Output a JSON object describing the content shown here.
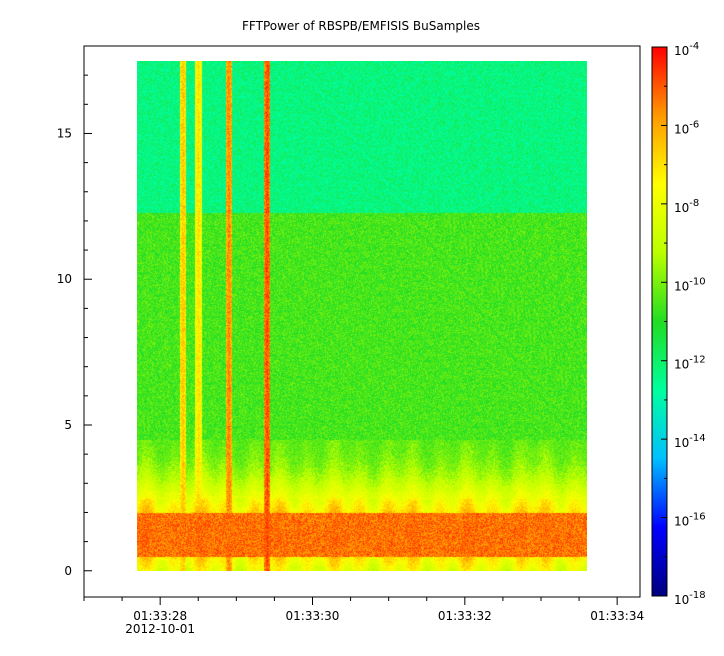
{
  "chart_data": {
    "type": "heatmap",
    "title": "FFTPower of RBSPB/EMFISIS  BuSamples",
    "xlabel": "",
    "ylabel": "",
    "x_axis": {
      "type": "time",
      "range": [
        "01:33:27",
        "01:33:34.3"
      ],
      "tick_labels": [
        "01:33:28",
        "01:33:30",
        "01:33:32",
        "01:33:34"
      ],
      "tick_sublabels": [
        "2012-10-01",
        "",
        "",
        ""
      ],
      "minor_tick_step_s": 0.5
    },
    "y_axis": {
      "range": [
        -0.9,
        18
      ],
      "ticks": [
        0,
        5,
        10,
        15
      ],
      "tick_labels": [
        "0",
        "5",
        "10",
        "15"
      ]
    },
    "colorbar": {
      "scale": "log",
      "range_exponents": [
        -18,
        -4
      ],
      "tick_labels": [
        {
          "base": "10",
          "exp": "-4"
        },
        {
          "base": "10",
          "exp": "-6"
        },
        {
          "base": "10",
          "exp": "-8"
        },
        {
          "base": "10",
          "exp": "-10"
        },
        {
          "base": "10",
          "exp": "-12"
        },
        {
          "base": "10",
          "exp": "-14"
        },
        {
          "base": "10",
          "exp": "-16"
        },
        {
          "base": "10",
          "exp": "-18"
        }
      ],
      "colormap": [
        "#00007f",
        "#0000ff",
        "#00bfff",
        "#00ff9f",
        "#22dd22",
        "#bbff00",
        "#ffff00",
        "#ff9900",
        "#ff0000"
      ]
    },
    "data_extent": {
      "x_start": "01:33:27.7",
      "x_end": "01:33:33.6",
      "y_min": 0,
      "y_max": 17.5
    },
    "grid": false,
    "legend": "colorbar-right",
    "features": [
      {
        "kind": "band",
        "y_from": 12.3,
        "y_to": 17.5,
        "log10_power": -12.3
      },
      {
        "kind": "band",
        "y_from": 0,
        "y_to": 12.3,
        "log10_power": -10.6
      },
      {
        "kind": "band",
        "y_from": 0.5,
        "y_to": 2.0,
        "log10_power": -5.3
      },
      {
        "kind": "spike",
        "t": "01:33:28.3",
        "log10_power": -6.5
      },
      {
        "kind": "spike",
        "t": "01:33:28.5",
        "log10_power": -7.0
      },
      {
        "kind": "spike",
        "t": "01:33:28.9",
        "log10_power": -5.5
      },
      {
        "kind": "spike",
        "t": "01:33:29.4",
        "log10_power": -4.8
      }
    ]
  }
}
